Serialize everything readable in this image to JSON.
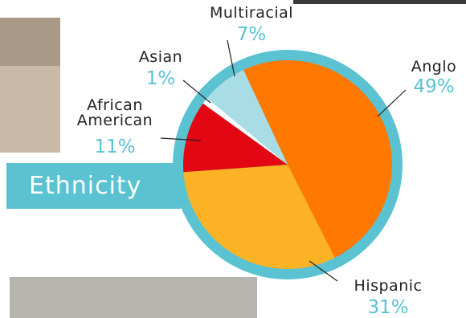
{
  "chart_data": {
    "type": "pie",
    "title": "Ethnicity",
    "categories": [
      "Anglo",
      "Hispanic",
      "African American",
      "Asian",
      "Multiracial"
    ],
    "values": [
      49,
      31,
      11,
      1,
      7
    ],
    "value_labels": [
      "49%",
      "31%",
      "11%",
      "1%",
      "7%"
    ],
    "colors": [
      "#ff7800",
      "#fbb225",
      "#e30613",
      "#ffffff",
      "#a8dde6"
    ],
    "ring_color": "#5bc2d2"
  }
}
